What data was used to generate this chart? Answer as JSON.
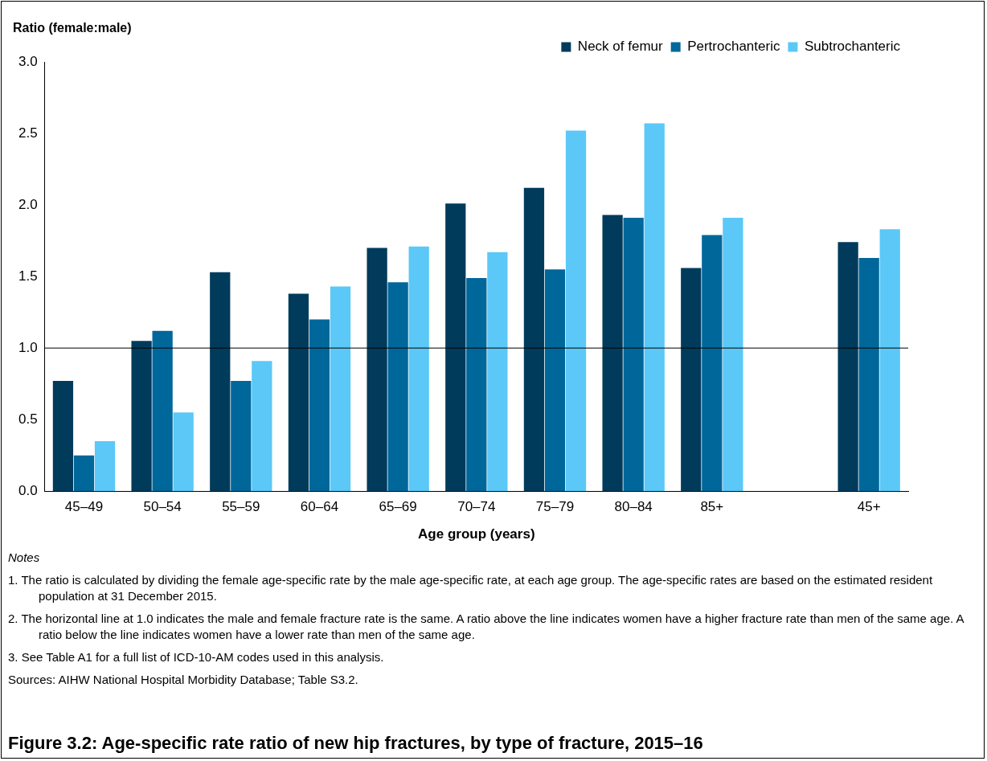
{
  "chart_data": {
    "type": "bar",
    "title": "Figure 3.2: Age-specific rate ratio of new hip fractures, by type of fracture, 2015–16",
    "ylabel": "Ratio (female:male)",
    "xlabel": "Age group (years)",
    "categories": [
      "45–49",
      "50–54",
      "55–59",
      "60–64",
      "65–69",
      "70–74",
      "75–79",
      "80–84",
      "85+",
      null,
      "45+"
    ],
    "series": [
      {
        "name": "Neck of femur",
        "color": "#003b5c",
        "values": [
          0.77,
          1.05,
          1.53,
          1.38,
          1.7,
          2.01,
          2.12,
          1.93,
          1.56,
          null,
          1.74
        ]
      },
      {
        "name": "Pertrochanteric",
        "color": "#00679b",
        "values": [
          0.25,
          1.12,
          0.77,
          1.2,
          1.46,
          1.49,
          1.55,
          1.91,
          1.79,
          null,
          1.63
        ]
      },
      {
        "name": "Subtrochanteric",
        "color": "#5bc8f7",
        "values": [
          0.35,
          0.55,
          0.91,
          1.43,
          1.71,
          1.67,
          2.52,
          2.57,
          1.91,
          null,
          1.83
        ]
      }
    ],
    "ylim": [
      0,
      3
    ],
    "yticks": [
      {
        "value": 0,
        "label": "0.0"
      },
      {
        "value": 0.5,
        "label": "0.5"
      },
      {
        "value": 1,
        "label": "1.0"
      },
      {
        "value": 1.5,
        "label": "1.5"
      },
      {
        "value": 2,
        "label": "2.0"
      },
      {
        "value": 2.5,
        "label": "2.5"
      },
      {
        "value": 3,
        "label": "3.0"
      }
    ],
    "ref_lines": [
      {
        "axis": "y",
        "value": 1,
        "color": "#000000"
      }
    ],
    "grid": false,
    "legend": "top right",
    "annotations": [
      "Notes",
      "1. The ratio is calculated by dividing the female age-specific rate by the male age-specific rate, at each age group. The age-specific rates are based on the estimated resident population at 31 December 2015.",
      "2. The horizontal line at 1.0 indicates the male and female fracture rate is the same. A ratio above the line indicates women have a higher fracture rate than men of the same age. A ratio below the line indicates women have a lower rate than men of the same age.",
      "3. See Table A1 for a full list of ICD-10-AM codes used in this analysis.",
      "Sources: AIHW National Hospital Morbidity Database; Table S3.2."
    ]
  }
}
